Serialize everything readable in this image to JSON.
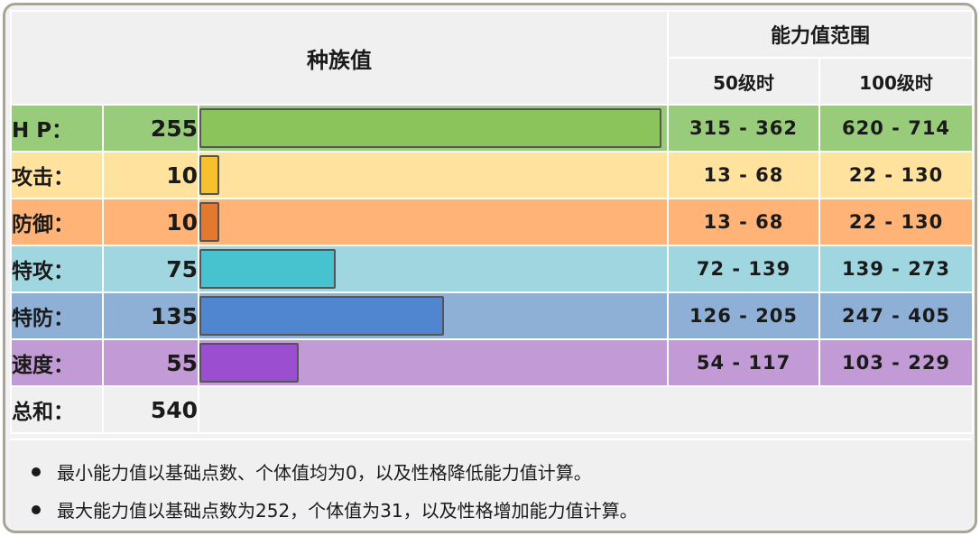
{
  "header": {
    "base_stats": "种族值",
    "stat_range": "能力值范围",
    "level50": "50级时",
    "level100": "100级时"
  },
  "stats": [
    {
      "name": "H P：",
      "value": 255,
      "range50": "315 - 362",
      "range100": "620 - 714",
      "row_color": "#99cc7a",
      "bar_color": "#8bc45a",
      "range_color": "#99cc7a"
    },
    {
      "name": "攻击：",
      "value": 10,
      "range50": "13 - 68",
      "range100": "22 - 130",
      "row_color": "#ffe29e",
      "bar_color": "#f6c12c",
      "range_color": "#ffe29e"
    },
    {
      "name": "防御：",
      "value": 10,
      "range50": "13 - 68",
      "range100": "22 - 130",
      "row_color": "#ffb377",
      "bar_color": "#e2792f",
      "range_color": "#ffb377"
    },
    {
      "name": "特攻：",
      "value": 75,
      "range50": "72 - 139",
      "range100": "139 - 273",
      "row_color": "#a0d6e0",
      "bar_color": "#47c2cf",
      "range_color": "#a0d6e0"
    },
    {
      "name": "特防：",
      "value": 135,
      "range50": "126 - 205",
      "range100": "247 - 405",
      "row_color": "#8fb0d6",
      "bar_color": "#4f86cf",
      "range_color": "#8fb0d6"
    },
    {
      "name": "速度：",
      "value": 55,
      "range50": "54 - 117",
      "range100": "103 - 229",
      "row_color": "#c29bd6",
      "bar_color": "#9b4ecf",
      "range_color": "#c29bd6"
    }
  ],
  "total": {
    "name": "总和：",
    "value": 540
  },
  "bar_max": 255,
  "notes": [
    "最小能力值以基础点数、个体值均为0，以及性格降低能力值计算。",
    "最大能力值以基础点数为252，个体值为31，以及性格增加能力值计算。"
  ]
}
